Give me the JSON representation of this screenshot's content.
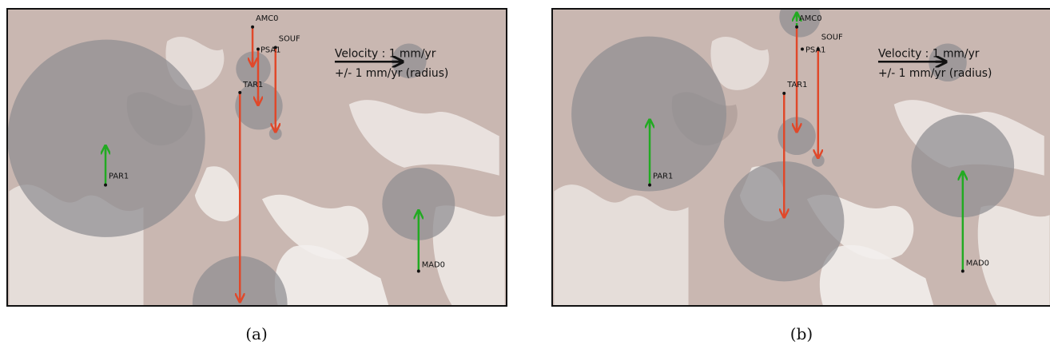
{
  "legend": {
    "velocity_text": "Velocity : 1 mm/yr",
    "radius_text": "+/- 1 mm/yr (radius)"
  },
  "panels": [
    {
      "caption": "(a)",
      "stations": [
        {
          "name": "PAR1",
          "arrow_color": "#22aa22",
          "arrow_style": "solid"
        },
        {
          "name": "AMC0",
          "arrow_color": "#e0482a",
          "arrow_style": "solid"
        },
        {
          "name": "PSA1",
          "arrow_color": "#e0482a",
          "arrow_style": "solid"
        },
        {
          "name": "SOUF",
          "arrow_color": "#e0482a",
          "arrow_style": "solid"
        },
        {
          "name": "TAR1",
          "arrow_color": "#e0482a",
          "arrow_style": "solid"
        },
        {
          "name": "MAD0",
          "arrow_color": "#22aa22",
          "arrow_style": "solid"
        }
      ]
    },
    {
      "caption": "(b)",
      "stations": [
        {
          "name": "PAR1",
          "arrow_color": "#22aa22",
          "arrow_style": "solid"
        },
        {
          "name": "AMC0",
          "arrow_color": "#22aa22",
          "arrow_style": "dashed"
        },
        {
          "name": "PSA1",
          "arrow_color": "#e0482a",
          "arrow_style": "solid"
        },
        {
          "name": "SOUF",
          "arrow_color": "#e0482a",
          "arrow_style": "solid"
        },
        {
          "name": "TAR1",
          "arrow_color": "#e0482a",
          "arrow_style": "solid"
        },
        {
          "name": "MAD0",
          "arrow_color": "#22aa22",
          "arrow_style": "solid"
        }
      ]
    }
  ],
  "colors": {
    "background": "#c9b7b1",
    "upward_arrow": "#22aa22",
    "downward_arrow": "#e0482a",
    "legend_arrow": "#111111",
    "uncertainty_circle": "#8f8e92"
  }
}
